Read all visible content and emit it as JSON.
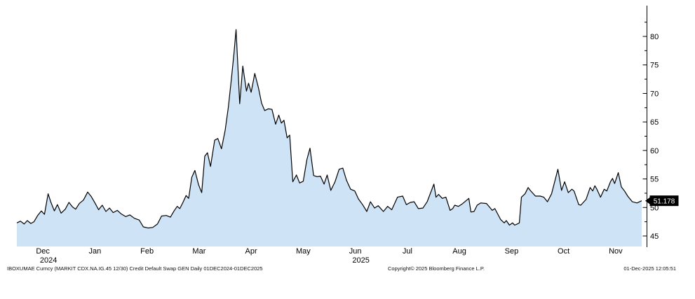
{
  "chart_data": {
    "type": "area",
    "title": "",
    "ticker": "IBOXUMAE Curncy",
    "security": "MARKIT CDX.NA.IG.45 12/30 Credit Default Swap",
    "x_tick_labels": [
      "Dec",
      "Jan",
      "Feb",
      "Mar",
      "Apr",
      "May",
      "Jun",
      "Jul",
      "Aug",
      "Sep",
      "Oct",
      "Nov"
    ],
    "x_year_labels": [
      {
        "text": "2024",
        "month_index": 0
      },
      {
        "text": "2025",
        "month_index": 6
      }
    ],
    "x_range": "01DEC2024-01DEC2025",
    "y_ticks": [
      45,
      50,
      55,
      60,
      65,
      70,
      75,
      80
    ],
    "y_minor_ticks": [
      47.5,
      52.5,
      57.5,
      62.5,
      67.5,
      72.5,
      77.5,
      82.5
    ],
    "ylim": [
      43,
      85
    ],
    "legend_position": "none",
    "grid": false,
    "last_value": 51.178,
    "last_value_label": "51.178",
    "line_color": "#000000",
    "fill_color": "#cee3f6",
    "series": [
      {
        "name": "MARKIT CDX.NA.IG.45 12/30 CDS spread (bp)",
        "x_unit": "months since 01-Dec-2024",
        "points": [
          [
            0.0,
            47.3
          ],
          [
            0.07,
            47.6
          ],
          [
            0.14,
            47.1
          ],
          [
            0.2,
            47.7
          ],
          [
            0.27,
            47.2
          ],
          [
            0.33,
            47.5
          ],
          [
            0.4,
            48.6
          ],
          [
            0.47,
            49.4
          ],
          [
            0.53,
            48.8
          ],
          [
            0.6,
            52.4
          ],
          [
            0.65,
            51.0
          ],
          [
            0.72,
            49.4
          ],
          [
            0.78,
            50.5
          ],
          [
            0.85,
            49.0
          ],
          [
            0.93,
            49.7
          ],
          [
            1.0,
            50.9
          ],
          [
            1.07,
            50.1
          ],
          [
            1.13,
            49.7
          ],
          [
            1.2,
            50.7
          ],
          [
            1.28,
            51.3
          ],
          [
            1.36,
            52.7
          ],
          [
            1.43,
            51.9
          ],
          [
            1.5,
            50.8
          ],
          [
            1.57,
            49.6
          ],
          [
            1.64,
            50.4
          ],
          [
            1.71,
            49.3
          ],
          [
            1.78,
            49.9
          ],
          [
            1.85,
            49.1
          ],
          [
            1.93,
            49.5
          ],
          [
            2.0,
            48.9
          ],
          [
            2.09,
            48.4
          ],
          [
            2.17,
            48.7
          ],
          [
            2.26,
            48.1
          ],
          [
            2.35,
            47.8
          ],
          [
            2.43,
            46.6
          ],
          [
            2.52,
            46.4
          ],
          [
            2.61,
            46.5
          ],
          [
            2.7,
            47.1
          ],
          [
            2.78,
            48.5
          ],
          [
            2.87,
            48.6
          ],
          [
            2.95,
            48.3
          ],
          [
            3.02,
            49.4
          ],
          [
            3.08,
            50.2
          ],
          [
            3.13,
            49.8
          ],
          [
            3.19,
            50.9
          ],
          [
            3.25,
            52.1
          ],
          [
            3.3,
            51.6
          ],
          [
            3.36,
            55.3
          ],
          [
            3.42,
            56.5
          ],
          [
            3.49,
            54.0
          ],
          [
            3.55,
            52.6
          ],
          [
            3.61,
            59.0
          ],
          [
            3.66,
            59.6
          ],
          [
            3.72,
            57.2
          ],
          [
            3.8,
            61.8
          ],
          [
            3.86,
            62.1
          ],
          [
            3.93,
            60.3
          ],
          [
            4.0,
            63.5
          ],
          [
            4.06,
            67.5
          ],
          [
            4.12,
            72.5
          ],
          [
            4.17,
            77.0
          ],
          [
            4.21,
            81.2
          ],
          [
            4.28,
            68.2
          ],
          [
            4.34,
            74.8
          ],
          [
            4.41,
            70.4
          ],
          [
            4.45,
            71.8
          ],
          [
            4.5,
            70.2
          ],
          [
            4.57,
            73.5
          ],
          [
            4.64,
            71.0
          ],
          [
            4.7,
            68.3
          ],
          [
            4.76,
            67.0
          ],
          [
            4.83,
            67.3
          ],
          [
            4.9,
            67.2
          ],
          [
            4.97,
            64.6
          ],
          [
            5.03,
            66.2
          ],
          [
            5.08,
            64.8
          ],
          [
            5.13,
            65.3
          ],
          [
            5.19,
            62.2
          ],
          [
            5.24,
            62.7
          ],
          [
            5.3,
            54.5
          ],
          [
            5.37,
            55.7
          ],
          [
            5.43,
            54.3
          ],
          [
            5.5,
            54.6
          ],
          [
            5.57,
            58.4
          ],
          [
            5.63,
            60.4
          ],
          [
            5.7,
            55.6
          ],
          [
            5.77,
            55.4
          ],
          [
            5.83,
            55.5
          ],
          [
            5.9,
            54.1
          ],
          [
            5.96,
            55.7
          ],
          [
            6.03,
            53.0
          ],
          [
            6.11,
            54.5
          ],
          [
            6.19,
            56.7
          ],
          [
            6.26,
            56.9
          ],
          [
            6.33,
            54.8
          ],
          [
            6.41,
            53.2
          ],
          [
            6.49,
            52.9
          ],
          [
            6.56,
            51.5
          ],
          [
            6.64,
            50.5
          ],
          [
            6.72,
            49.3
          ],
          [
            6.79,
            51.0
          ],
          [
            6.87,
            49.9
          ],
          [
            6.94,
            50.3
          ],
          [
            7.04,
            49.3
          ],
          [
            7.12,
            50.2
          ],
          [
            7.2,
            49.6
          ],
          [
            7.31,
            51.8
          ],
          [
            7.41,
            52.0
          ],
          [
            7.48,
            50.5
          ],
          [
            7.56,
            50.9
          ],
          [
            7.63,
            51.0
          ],
          [
            7.71,
            49.8
          ],
          [
            7.8,
            49.9
          ],
          [
            7.88,
            51.0
          ],
          [
            8.01,
            54.1
          ],
          [
            8.05,
            51.8
          ],
          [
            8.1,
            52.3
          ],
          [
            8.17,
            51.6
          ],
          [
            8.24,
            51.8
          ],
          [
            8.32,
            49.5
          ],
          [
            8.37,
            49.8
          ],
          [
            8.41,
            50.4
          ],
          [
            8.48,
            50.2
          ],
          [
            8.55,
            50.6
          ],
          [
            8.68,
            51.6
          ],
          [
            8.72,
            49.2
          ],
          [
            8.78,
            49.3
          ],
          [
            8.84,
            50.4
          ],
          [
            8.91,
            50.8
          ],
          [
            9.02,
            50.7
          ],
          [
            9.13,
            49.5
          ],
          [
            9.18,
            49.8
          ],
          [
            9.29,
            47.9
          ],
          [
            9.36,
            47.3
          ],
          [
            9.4,
            47.7
          ],
          [
            9.46,
            46.9
          ],
          [
            9.52,
            47.3
          ],
          [
            9.56,
            46.9
          ],
          [
            9.61,
            47.1
          ],
          [
            9.65,
            47.3
          ],
          [
            9.69,
            51.8
          ],
          [
            9.76,
            52.4
          ],
          [
            9.82,
            53.5
          ],
          [
            9.86,
            53.0
          ],
          [
            9.96,
            52.0
          ],
          [
            10.05,
            52.0
          ],
          [
            10.12,
            51.8
          ],
          [
            10.19,
            51.0
          ],
          [
            10.27,
            52.4
          ],
          [
            10.39,
            56.7
          ],
          [
            10.46,
            53.0
          ],
          [
            10.52,
            54.5
          ],
          [
            10.59,
            52.6
          ],
          [
            10.66,
            53.2
          ],
          [
            10.7,
            52.9
          ],
          [
            10.79,
            50.5
          ],
          [
            10.83,
            50.4
          ],
          [
            10.93,
            51.4
          ],
          [
            11.01,
            53.5
          ],
          [
            11.06,
            52.9
          ],
          [
            11.1,
            53.8
          ],
          [
            11.14,
            53.2
          ],
          [
            11.21,
            51.8
          ],
          [
            11.28,
            53.2
          ],
          [
            11.33,
            52.9
          ],
          [
            11.4,
            54.5
          ],
          [
            11.44,
            55.1
          ],
          [
            11.48,
            54.2
          ],
          [
            11.55,
            56.1
          ],
          [
            11.61,
            53.6
          ],
          [
            11.67,
            52.9
          ],
          [
            11.73,
            52.0
          ],
          [
            11.82,
            51.0
          ],
          [
            11.91,
            50.8
          ],
          [
            12.0,
            51.18
          ]
        ]
      }
    ]
  },
  "footer": {
    "left": "IBOXUMAE Curncy (MARKIT CDX.NA.IG.45 12/30) Credit Default Swap GEN Daily 01DEC2024-01DEC2025",
    "center": "Copyright© 2025 Bloomberg Finance L.P.",
    "right": "01-Dec-2025 12:05:51"
  }
}
